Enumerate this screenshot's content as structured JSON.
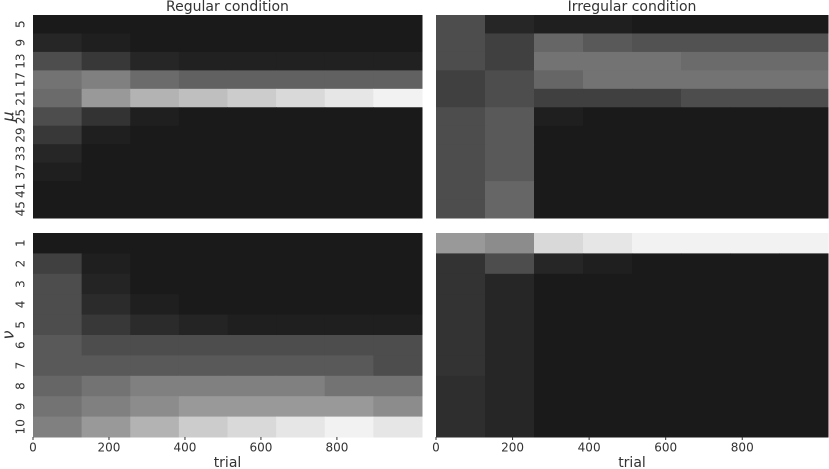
{
  "chart_data": [
    {
      "type": "heatmap",
      "title": "Regular condition",
      "ylabel": "μ",
      "rows": [
        "5",
        "9",
        "13",
        "17",
        "21",
        "25",
        "29",
        "33",
        "37",
        "41",
        "45"
      ],
      "x": [
        0,
        128,
        256,
        384,
        512,
        640,
        768,
        896,
        1024
      ],
      "xlim": [
        0,
        1024
      ],
      "values": [
        [
          0.1,
          0.1,
          0.1,
          0.1,
          0.1,
          0.1,
          0.1,
          0.1
        ],
        [
          0.15,
          0.12,
          0.1,
          0.1,
          0.1,
          0.1,
          0.1,
          0.1
        ],
        [
          0.3,
          0.22,
          0.15,
          0.13,
          0.13,
          0.13,
          0.13,
          0.13
        ],
        [
          0.45,
          0.5,
          0.42,
          0.38,
          0.38,
          0.38,
          0.38,
          0.38
        ],
        [
          0.42,
          0.6,
          0.7,
          0.75,
          0.8,
          0.85,
          0.9,
          0.95
        ],
        [
          0.3,
          0.2,
          0.12,
          0.1,
          0.1,
          0.1,
          0.1,
          0.1
        ],
        [
          0.22,
          0.12,
          0.1,
          0.1,
          0.1,
          0.1,
          0.1,
          0.1
        ],
        [
          0.15,
          0.1,
          0.1,
          0.1,
          0.1,
          0.1,
          0.1,
          0.1
        ],
        [
          0.12,
          0.1,
          0.1,
          0.1,
          0.1,
          0.1,
          0.1,
          0.1
        ],
        [
          0.1,
          0.1,
          0.1,
          0.1,
          0.1,
          0.1,
          0.1,
          0.1
        ],
        [
          0.1,
          0.1,
          0.1,
          0.1,
          0.1,
          0.1,
          0.1,
          0.1
        ]
      ]
    },
    {
      "type": "heatmap",
      "title": "Irregular condition",
      "x": [
        0,
        128,
        256,
        384,
        512,
        640,
        768,
        896,
        1024
      ],
      "xlim": [
        0,
        1024
      ],
      "values": [
        [
          0.3,
          0.15,
          0.12,
          0.12,
          0.1,
          0.1,
          0.1,
          0.1
        ],
        [
          0.3,
          0.25,
          0.4,
          0.35,
          0.32,
          0.32,
          0.32,
          0.32
        ],
        [
          0.3,
          0.25,
          0.45,
          0.45,
          0.45,
          0.42,
          0.42,
          0.42
        ],
        [
          0.25,
          0.3,
          0.4,
          0.45,
          0.45,
          0.45,
          0.45,
          0.45
        ],
        [
          0.25,
          0.3,
          0.25,
          0.25,
          0.25,
          0.3,
          0.3,
          0.3
        ],
        [
          0.3,
          0.35,
          0.12,
          0.1,
          0.1,
          0.1,
          0.1,
          0.1
        ],
        [
          0.3,
          0.35,
          0.1,
          0.1,
          0.1,
          0.1,
          0.1,
          0.1
        ],
        [
          0.3,
          0.35,
          0.1,
          0.1,
          0.1,
          0.1,
          0.1,
          0.1
        ],
        [
          0.3,
          0.35,
          0.1,
          0.1,
          0.1,
          0.1,
          0.1,
          0.1
        ],
        [
          0.3,
          0.4,
          0.1,
          0.1,
          0.1,
          0.1,
          0.1,
          0.1
        ],
        [
          0.3,
          0.4,
          0.1,
          0.1,
          0.1,
          0.1,
          0.1,
          0.1
        ]
      ]
    },
    {
      "type": "heatmap",
      "ylabel": "ν",
      "xlabel": "trial",
      "rows": [
        "1",
        "2",
        "3",
        "4",
        "5",
        "6",
        "7",
        "8",
        "9",
        "10"
      ],
      "x": [
        0,
        128,
        256,
        384,
        512,
        640,
        768,
        896,
        1024
      ],
      "xlim": [
        0,
        1024
      ],
      "xticks": [
        0,
        200,
        400,
        600,
        800
      ],
      "values": [
        [
          0.1,
          0.1,
          0.1,
          0.1,
          0.1,
          0.1,
          0.1,
          0.1
        ],
        [
          0.25,
          0.12,
          0.1,
          0.1,
          0.1,
          0.1,
          0.1,
          0.1
        ],
        [
          0.3,
          0.14,
          0.1,
          0.1,
          0.1,
          0.1,
          0.1,
          0.1
        ],
        [
          0.3,
          0.17,
          0.12,
          0.1,
          0.1,
          0.1,
          0.1,
          0.1
        ],
        [
          0.3,
          0.22,
          0.17,
          0.14,
          0.12,
          0.12,
          0.12,
          0.12
        ],
        [
          0.35,
          0.3,
          0.3,
          0.3,
          0.3,
          0.3,
          0.3,
          0.3
        ],
        [
          0.35,
          0.35,
          0.35,
          0.35,
          0.35,
          0.35,
          0.35,
          0.3
        ],
        [
          0.4,
          0.45,
          0.5,
          0.5,
          0.5,
          0.5,
          0.45,
          0.45
        ],
        [
          0.45,
          0.5,
          0.55,
          0.6,
          0.6,
          0.6,
          0.6,
          0.55
        ],
        [
          0.5,
          0.6,
          0.7,
          0.8,
          0.85,
          0.9,
          0.95,
          0.9
        ]
      ]
    },
    {
      "type": "heatmap",
      "xlabel": "trial",
      "x": [
        0,
        128,
        256,
        384,
        512,
        640,
        768,
        896,
        1024
      ],
      "xlim": [
        0,
        1024
      ],
      "xticks": [
        0,
        200,
        400,
        600,
        800
      ],
      "values": [
        [
          0.6,
          0.55,
          0.85,
          0.9,
          0.95,
          0.95,
          0.95,
          0.95
        ],
        [
          0.2,
          0.3,
          0.15,
          0.12,
          0.1,
          0.1,
          0.1,
          0.1
        ],
        [
          0.2,
          0.15,
          0.1,
          0.1,
          0.1,
          0.1,
          0.1,
          0.1
        ],
        [
          0.2,
          0.15,
          0.1,
          0.1,
          0.1,
          0.1,
          0.1,
          0.1
        ],
        [
          0.2,
          0.15,
          0.1,
          0.1,
          0.1,
          0.1,
          0.1,
          0.1
        ],
        [
          0.2,
          0.15,
          0.1,
          0.1,
          0.1,
          0.1,
          0.1,
          0.1
        ],
        [
          0.2,
          0.15,
          0.1,
          0.1,
          0.1,
          0.1,
          0.1,
          0.1
        ],
        [
          0.18,
          0.15,
          0.1,
          0.1,
          0.1,
          0.1,
          0.1,
          0.1
        ],
        [
          0.18,
          0.15,
          0.1,
          0.1,
          0.1,
          0.1,
          0.1,
          0.1
        ],
        [
          0.18,
          0.15,
          0.1,
          0.1,
          0.1,
          0.1,
          0.1,
          0.1
        ]
      ]
    }
  ]
}
